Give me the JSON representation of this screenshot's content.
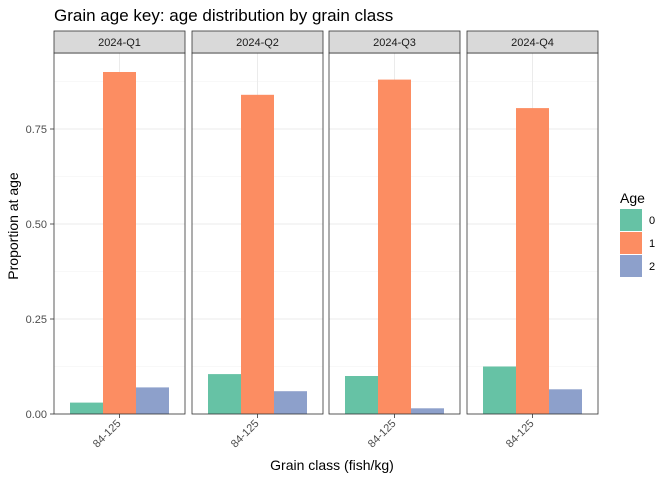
{
  "chart_data": {
    "type": "bar",
    "title": "Grain age key: age distribution by grain class",
    "xlabel": "Grain class (fish/kg)",
    "ylabel": "Proportion at age",
    "ylim": [
      0,
      0.95
    ],
    "yticks": [
      "0.00",
      "0.25",
      "0.50",
      "0.75"
    ],
    "categories": [
      "84-125"
    ],
    "legend": {
      "title": "Age",
      "position": "right"
    },
    "series": [
      {
        "name": "0",
        "color": "#66c2a5"
      },
      {
        "name": "1",
        "color": "#fc8d62"
      },
      {
        "name": "2",
        "color": "#8da0cb"
      }
    ],
    "grid": true,
    "facets": [
      {
        "label": "2024-Q1",
        "values": [
          0.03,
          0.9,
          0.07
        ]
      },
      {
        "label": "2024-Q2",
        "values": [
          0.105,
          0.84,
          0.06
        ]
      },
      {
        "label": "2024-Q3",
        "values": [
          0.1,
          0.88,
          0.015
        ]
      },
      {
        "label": "2024-Q4",
        "values": [
          0.125,
          0.805,
          0.065
        ]
      }
    ]
  }
}
